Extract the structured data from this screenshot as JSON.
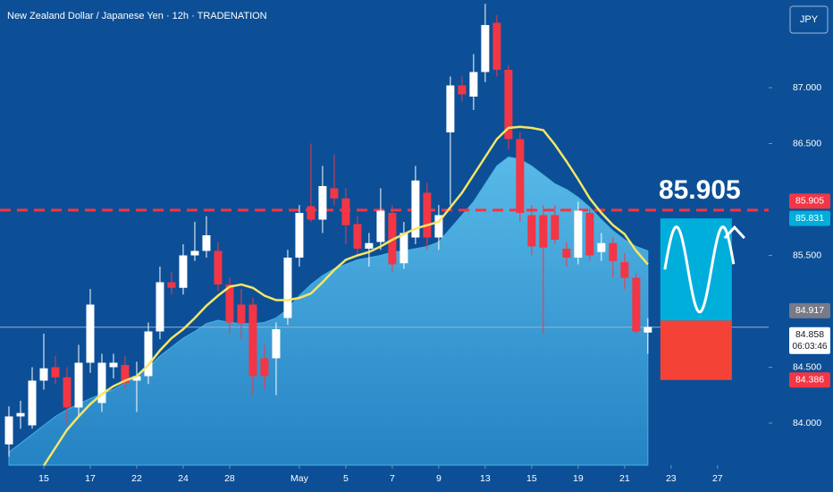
{
  "header": {
    "title": "New Zealand Dollar / Japanese Yen · 12h · TRADENATION",
    "currency": "JPY"
  },
  "chart_data": {
    "type": "candlestick",
    "open": [
      83.81,
      84.06,
      83.98,
      84.38,
      84.5,
      84.41,
      84.14,
      84.54,
      84.18,
      84.5,
      84.52,
      84.38,
      84.42,
      84.82,
      85.26,
      85.21,
      85.5,
      85.54,
      85.54,
      85.24,
      85.06,
      85.06,
      84.58,
      84.58,
      84.94,
      85.48,
      85.94,
      85.82,
      86.1,
      86.01,
      85.78,
      85.56,
      85.62,
      85.88,
      85.43,
      85.66,
      86.06,
      85.66,
      86.6,
      87.02,
      86.92,
      87.14,
      87.58,
      87.16,
      86.54,
      85.86,
      85.86,
      85.86,
      85.56,
      85.48,
      85.88,
      85.53,
      85.61,
      85.44,
      85.3,
      84.81
    ],
    "high": [
      84.15,
      84.2,
      84.5,
      84.8,
      84.6,
      84.5,
      84.7,
      85.2,
      84.62,
      84.62,
      84.6,
      84.55,
      84.9,
      85.4,
      85.35,
      85.6,
      85.8,
      85.85,
      85.62,
      85.3,
      85.2,
      85.12,
      84.7,
      84.9,
      85.55,
      85.95,
      86.5,
      86.3,
      86.4,
      86.1,
      85.85,
      85.7,
      86.1,
      85.95,
      85.8,
      86.3,
      86.15,
      85.95,
      87.1,
      87.1,
      87.3,
      87.75,
      87.65,
      87.2,
      86.6,
      85.95,
      85.95,
      85.95,
      85.62,
      85.98,
      85.92,
      85.7,
      85.66,
      85.52,
      85.34,
      84.94
    ],
    "low": [
      83.7,
      83.95,
      83.95,
      84.3,
      84.35,
      84.0,
      84.05,
      84.45,
      84.1,
      84.4,
      84.3,
      84.1,
      84.35,
      84.75,
      85.15,
      85.15,
      85.45,
      85.48,
      85.18,
      84.8,
      84.75,
      84.25,
      84.3,
      84.25,
      84.88,
      85.4,
      85.8,
      85.7,
      85.95,
      85.6,
      85.5,
      85.4,
      85.55,
      85.35,
      85.38,
      85.6,
      85.55,
      85.55,
      85.95,
      86.88,
      86.8,
      87.05,
      87.1,
      86.45,
      85.8,
      85.5,
      84.8,
      85.6,
      85.4,
      85.42,
      85.45,
      85.45,
      85.3,
      85.2,
      84.8,
      84.62
    ],
    "close": [
      84.06,
      84.09,
      84.38,
      84.49,
      84.41,
      84.14,
      84.54,
      85.06,
      84.54,
      84.54,
      84.36,
      84.42,
      84.82,
      85.26,
      85.21,
      85.5,
      85.54,
      85.68,
      85.24,
      84.9,
      84.89,
      84.42,
      84.42,
      84.84,
      85.48,
      85.88,
      85.82,
      86.12,
      86.01,
      85.77,
      85.56,
      85.61,
      85.9,
      85.42,
      85.7,
      86.17,
      85.66,
      85.86,
      87.02,
      86.94,
      87.14,
      87.56,
      87.16,
      86.54,
      85.88,
      85.58,
      85.57,
      85.64,
      85.48,
      85.9,
      85.5,
      85.61,
      85.45,
      85.3,
      84.82,
      84.86
    ],
    "colors": {
      "up": "#ffffff",
      "down": "#f23645"
    },
    "lines": [
      {
        "color": "#f5e663",
        "values": [
          null,
          null,
          null,
          83.62,
          83.78,
          83.94,
          84.06,
          84.17,
          84.26,
          84.33,
          84.38,
          84.42,
          84.52,
          84.65,
          84.76,
          84.84,
          84.94,
          85.05,
          85.14,
          85.22,
          85.24,
          85.21,
          85.14,
          85.1,
          85.1,
          85.12,
          85.16,
          85.26,
          85.37,
          85.46,
          85.5,
          85.53,
          85.58,
          85.64,
          85.69,
          85.74,
          85.77,
          85.8,
          85.93,
          86.06,
          86.22,
          86.38,
          86.54,
          86.64,
          86.65,
          86.64,
          86.62,
          86.49,
          86.34,
          86.18,
          86.01,
          85.88,
          85.77,
          85.69,
          85.54,
          85.42
        ]
      }
    ],
    "area": {
      "color": "#4ab0e0",
      "values": [
        83.74,
        83.82,
        83.9,
        83.98,
        84.06,
        84.12,
        84.17,
        84.22,
        84.26,
        84.3,
        84.36,
        84.42,
        84.5,
        84.6,
        84.68,
        84.76,
        84.82,
        84.89,
        84.92,
        84.9,
        84.89,
        84.89,
        84.9,
        84.94,
        85.02,
        85.14,
        85.24,
        85.32,
        85.38,
        85.42,
        85.46,
        85.48,
        85.5,
        85.53,
        85.54,
        85.56,
        85.58,
        85.62,
        85.74,
        85.86,
        85.98,
        86.14,
        86.3,
        86.38,
        86.36,
        86.3,
        86.22,
        86.14,
        86.09,
        86.02,
        85.93,
        85.82,
        85.72,
        85.64,
        85.58,
        85.54
      ]
    },
    "xlim": [
      -0.77,
      65.4
    ],
    "xticks": [
      {
        "value": 3,
        "label": "15"
      },
      {
        "value": 7,
        "label": "17"
      },
      {
        "value": 11,
        "label": "22"
      },
      {
        "value": 15,
        "label": "24"
      },
      {
        "value": 19,
        "label": "28"
      },
      {
        "value": 25,
        "label": "May"
      },
      {
        "value": 29,
        "label": "5"
      },
      {
        "value": 33,
        "label": "7"
      },
      {
        "value": 37,
        "label": "9"
      },
      {
        "value": 41,
        "label": "13"
      },
      {
        "value": 45,
        "label": "15"
      },
      {
        "value": 49,
        "label": "19"
      },
      {
        "value": 53,
        "label": "21"
      },
      {
        "value": 57,
        "label": "23"
      },
      {
        "value": 61,
        "label": "27"
      }
    ],
    "ylim": [
      83.624,
      87.784
    ],
    "yticks": [
      {
        "value": 84,
        "label": "84.000"
      },
      {
        "value": 84.5,
        "label": "84.500"
      },
      {
        "value": 85.5,
        "label": "85.500"
      },
      {
        "value": 86.5,
        "label": "86.500"
      },
      {
        "value": 87,
        "label": "87.000"
      }
    ],
    "price_lines": [
      {
        "value": 85.905,
        "color": "#f23645",
        "style": "dashed"
      },
      {
        "value": 84.858,
        "color": "#8fb3d6",
        "style": "solid"
      }
    ],
    "price_tags": [
      {
        "value": 85.905,
        "bg": "#f23645",
        "fg": "#ffffff"
      },
      {
        "value": 85.831,
        "bg": "#00aedb",
        "fg": "#ffffff"
      },
      {
        "value": 84.917,
        "bg": "#787b86",
        "fg": "#ffffff"
      },
      {
        "value": 84.858,
        "bg": "#ffffff",
        "fg": "#131722",
        "countdown": "06:03:46"
      },
      {
        "value": 84.386,
        "bg": "#f23645",
        "fg": "#ffffff"
      }
    ],
    "position": {
      "target": 85.831,
      "entry": 84.917,
      "stop": 84.386,
      "target_color": "#00aedb",
      "stop_color": "#f44336"
    },
    "annotation": "85.905"
  }
}
